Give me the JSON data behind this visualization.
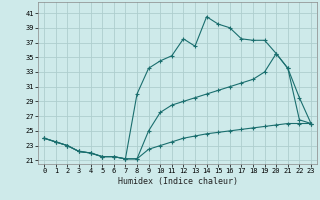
{
  "xlabel": "Humidex (Indice chaleur)",
  "bg_color": "#ceeaea",
  "grid_color": "#aecece",
  "line_color": "#1a6e6e",
  "xlim": [
    -0.5,
    23.5
  ],
  "ylim": [
    20.5,
    42.5
  ],
  "xticks": [
    0,
    1,
    2,
    3,
    4,
    5,
    6,
    7,
    8,
    9,
    10,
    11,
    12,
    13,
    14,
    15,
    16,
    17,
    18,
    19,
    20,
    21,
    22,
    23
  ],
  "yticks": [
    21,
    23,
    25,
    27,
    29,
    31,
    33,
    35,
    37,
    39,
    41
  ],
  "line1_x": [
    0,
    1,
    2,
    3,
    4,
    5,
    6,
    7,
    8,
    9,
    10,
    11,
    12,
    13,
    14,
    15,
    16,
    17,
    18,
    19,
    20,
    21,
    22,
    23
  ],
  "line1_y": [
    24.0,
    23.5,
    23.0,
    22.2,
    22.0,
    21.5,
    21.5,
    21.2,
    30.0,
    33.5,
    34.5,
    35.2,
    37.5,
    36.5,
    40.5,
    39.5,
    39.0,
    37.5,
    37.3,
    37.3,
    35.5,
    33.5,
    29.5,
    26.0
  ],
  "line2_x": [
    0,
    1,
    2,
    3,
    4,
    5,
    6,
    7,
    8,
    9,
    10,
    11,
    12,
    13,
    14,
    15,
    16,
    17,
    18,
    19,
    20,
    21,
    22,
    23
  ],
  "line2_y": [
    24.0,
    23.5,
    23.0,
    22.2,
    22.0,
    21.5,
    21.5,
    21.2,
    21.2,
    25.0,
    27.5,
    28.5,
    29.0,
    29.5,
    30.0,
    30.5,
    31.0,
    31.5,
    32.0,
    33.0,
    35.5,
    33.5,
    26.5,
    26.0
  ],
  "line3_x": [
    0,
    1,
    2,
    3,
    4,
    5,
    6,
    7,
    8,
    9,
    10,
    11,
    12,
    13,
    14,
    15,
    16,
    17,
    18,
    19,
    20,
    21,
    22,
    23
  ],
  "line3_y": [
    24.0,
    23.5,
    23.0,
    22.2,
    22.0,
    21.5,
    21.5,
    21.2,
    21.2,
    22.5,
    23.0,
    23.5,
    24.0,
    24.3,
    24.6,
    24.8,
    25.0,
    25.2,
    25.4,
    25.6,
    25.8,
    26.0,
    26.0,
    26.0
  ]
}
